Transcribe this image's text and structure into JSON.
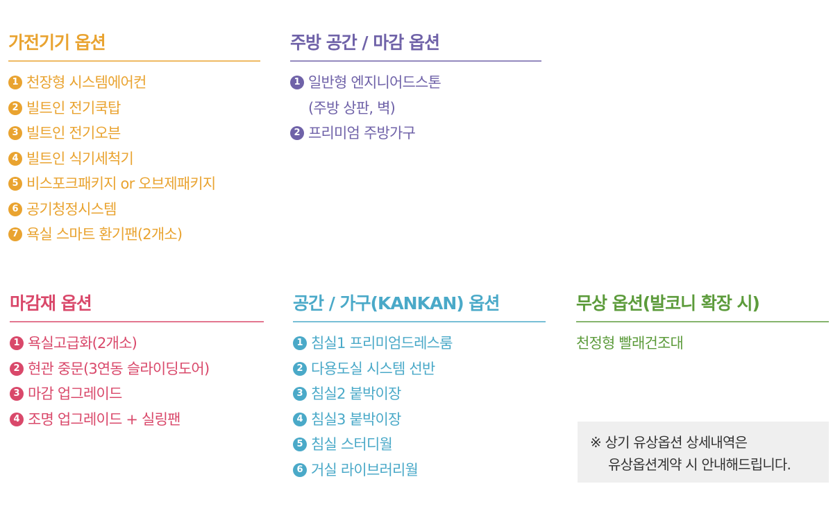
{
  "colors": {
    "appliance": "#e9a330",
    "kitchen": "#6f62a8",
    "finish": "#d9486a",
    "space": "#4aa9c8",
    "free": "#5c9b3b"
  },
  "sections": [
    {
      "key": "appliance",
      "title": "가전기기 옵션",
      "items": [
        "천장형 시스템에어컨",
        "빌트인 전기쿡탑",
        "빌트인 전기오븐",
        "빌트인 식기세척기",
        "비스포크패키지 or 오브제패키지",
        "공기청정시스템",
        "욕실 스마트 환기팬(2개소)"
      ]
    },
    {
      "key": "kitchen",
      "title": "주방 공간 / 마감 옵션",
      "items": [
        "일반형 엔지니어드스톤",
        "프리미엄 주방가구"
      ],
      "item1_continuation": "(주방 상판, 벽)"
    },
    {
      "key": "finish",
      "title": "마감재 옵션",
      "items": [
        "욕실고급화(2개소)",
        "현관 중문(3연동 슬라이딩도어)",
        "마감 업그레이드",
        "조명 업그레이드 + 실링팬"
      ]
    },
    {
      "key": "space",
      "title": "공간 / 가구(KANKAN) 옵션",
      "items": [
        "침실1 프리미엄드레스룸",
        "다용도실 시스템 선반",
        "침실2 붙박이장",
        "침실3 붙박이장",
        "침실 스터디월",
        "거실 라이브러리월"
      ]
    },
    {
      "key": "free",
      "title": "무상 옵션(발코니 확장 시)",
      "items": [
        "천정형 빨래건조대"
      ]
    }
  ],
  "note": {
    "line1": "※ 상기 유상옵션 상세내역은",
    "line2": "유상옵션계약 시 안내해드립니다."
  }
}
